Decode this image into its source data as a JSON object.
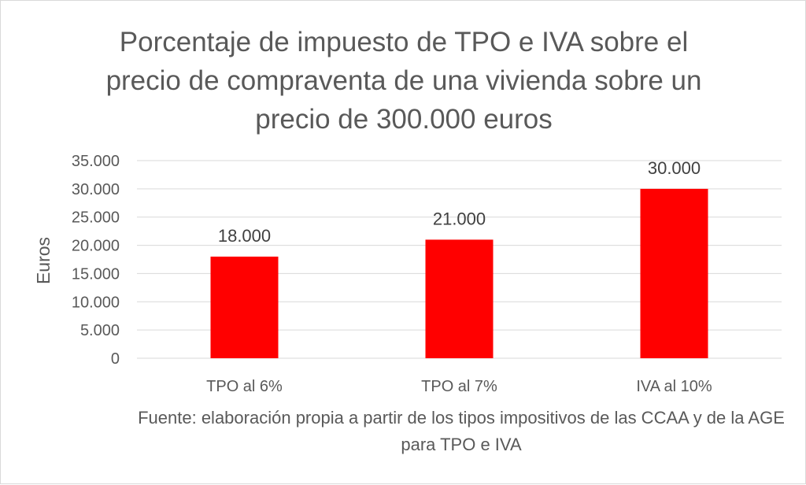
{
  "chart_data": {
    "type": "bar",
    "title": "Porcentaje de impuesto de TPO e IVA sobre el\nprecio de compraventa de una vivienda sobre un\nprecio de 300.000 euros",
    "categories": [
      "TPO al 6%",
      "TPO al 7%",
      "IVA al 10%"
    ],
    "values": [
      18000,
      21000,
      30000
    ],
    "value_labels": [
      "18.000",
      "21.000",
      "30.000"
    ],
    "ylabel": "Euros",
    "xlabel": "",
    "ylim": [
      0,
      35000
    ],
    "yticks": [
      0,
      5000,
      10000,
      15000,
      20000,
      25000,
      30000,
      35000
    ],
    "ytick_labels": [
      "0",
      "5.000",
      "10.000",
      "15.000",
      "20.000",
      "25.000",
      "30.000",
      "35.000"
    ],
    "grid": true,
    "bar_color": "#ff0000",
    "source": "Fuente: elaboración propia a partir de los tipos impositivos de las CCAA y de la AGE para TPO e IVA"
  }
}
